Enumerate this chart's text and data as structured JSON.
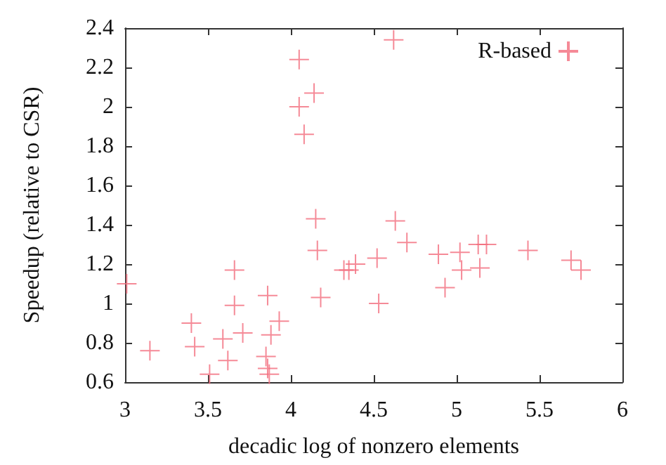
{
  "chart_data": {
    "type": "scatter",
    "xlabel": "decadic log of nonzero elements",
    "ylabel": "Speedup (relative to CSR)",
    "xlim": [
      3,
      6
    ],
    "xticks": [
      3,
      3.5,
      4,
      4.5,
      5,
      5.5,
      6
    ],
    "ylim": [
      0.6,
      2.4
    ],
    "yticks": [
      0.6,
      0.8,
      1,
      1.2,
      1.4,
      1.6,
      1.8,
      2,
      2.2,
      2.4
    ],
    "grid": false,
    "legend": "top right",
    "marker": "cross",
    "series": [
      {
        "name": "R-based",
        "color": "#f26d7d",
        "x": [
          4.05,
          4.14,
          4.05,
          4.08,
          4.15,
          4.62,
          3.01,
          3.15,
          3.4,
          3.42,
          3.51,
          3.59,
          3.62,
          3.66,
          3.66,
          3.71,
          3.85,
          3.86,
          3.88,
          3.93,
          3.86,
          3.87,
          4.16,
          4.18,
          4.63,
          4.7,
          4.89,
          5.02,
          5.03,
          4.93,
          5.13,
          5.18,
          5.14,
          5.43,
          5.69,
          5.75,
          4.52,
          4.53,
          4.32,
          4.35,
          4.39
        ],
        "values": [
          2.24,
          2.07,
          2.0,
          1.86,
          1.43,
          2.34,
          1.1,
          0.76,
          0.9,
          0.78,
          0.64,
          0.82,
          0.71,
          1.17,
          0.99,
          0.85,
          0.73,
          1.04,
          0.84,
          0.91,
          0.67,
          0.64,
          1.27,
          1.03,
          1.42,
          1.31,
          1.25,
          1.26,
          1.17,
          1.08,
          1.3,
          1.3,
          1.18,
          1.27,
          1.22,
          1.17,
          1.23,
          1.0,
          1.17,
          1.17,
          1.2
        ]
      }
    ]
  }
}
